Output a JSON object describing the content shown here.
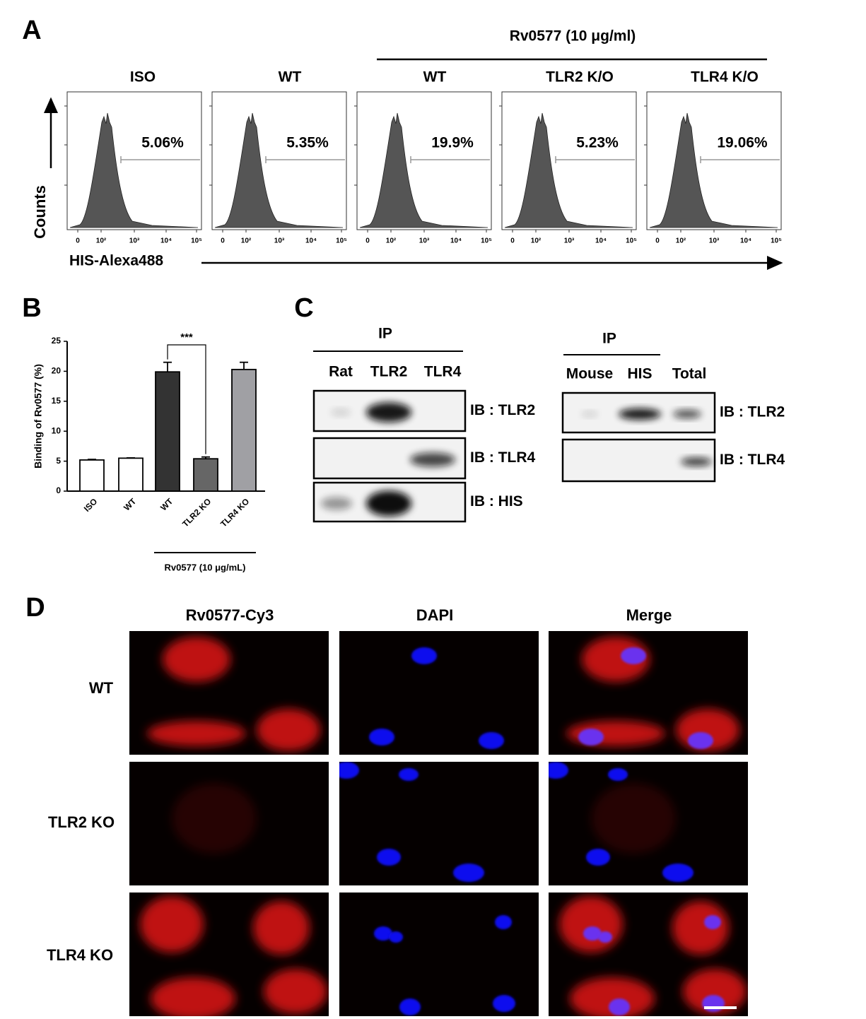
{
  "panel_labels": [
    "A",
    "B",
    "C",
    "D"
  ],
  "panel_a": {
    "treatment": "Rv0577 (10 μg/ml)",
    "y_label": "Counts",
    "x_label": "HIS-Alexa488",
    "x_tick_labels": [
      "0",
      "10²",
      "10³",
      "10⁴",
      "10⁵"
    ],
    "samples": [
      {
        "name": "ISO",
        "gate_percent": "5.06%"
      },
      {
        "name": "WT",
        "gate_percent": "5.35%"
      },
      {
        "name": "WT",
        "gate_percent": "19.9%"
      },
      {
        "name": "TLR2 K/O",
        "gate_percent": "5.23%"
      },
      {
        "name": "TLR4 K/O",
        "gate_percent": "19.06%"
      }
    ]
  },
  "chart_data": {
    "type": "bar",
    "y_label": "Binding of Rv0577 (%)",
    "categories": [
      "ISO",
      "WT",
      "WT",
      "TLR2 KO",
      "TLR4 KO"
    ],
    "values": [
      5.2,
      5.5,
      19.9,
      5.4,
      20.3
    ],
    "errors": [
      0.1,
      0.05,
      1.6,
      0.3,
      1.2
    ],
    "colors": [
      "#ffffff",
      "#ffffff",
      "#333333",
      "#666666",
      "#a0a0a4"
    ],
    "ylim": [
      0,
      25
    ],
    "yticks": [
      0,
      5,
      10,
      15,
      20,
      25
    ],
    "significance": {
      "label": "***",
      "between": [
        2,
        3
      ]
    },
    "group_label": "Rv0577 (10 μg/mL)"
  },
  "panel_c": {
    "left": {
      "header": "IP",
      "lanes": [
        "Rat",
        "TLR2",
        "TLR4"
      ],
      "blots": [
        "IB : TLR2",
        "IB : TLR4",
        "IB : HIS"
      ]
    },
    "right": {
      "header": "IP",
      "lanes": [
        "Mouse",
        "HIS",
        "Total"
      ],
      "blots": [
        "IB : TLR2",
        "IB : TLR4"
      ]
    }
  },
  "panel_d": {
    "columns": [
      "Rv0577-Cy3",
      "DAPI",
      "Merge"
    ],
    "rows": [
      "WT",
      "TLR2 KO",
      "TLR4 KO"
    ]
  }
}
